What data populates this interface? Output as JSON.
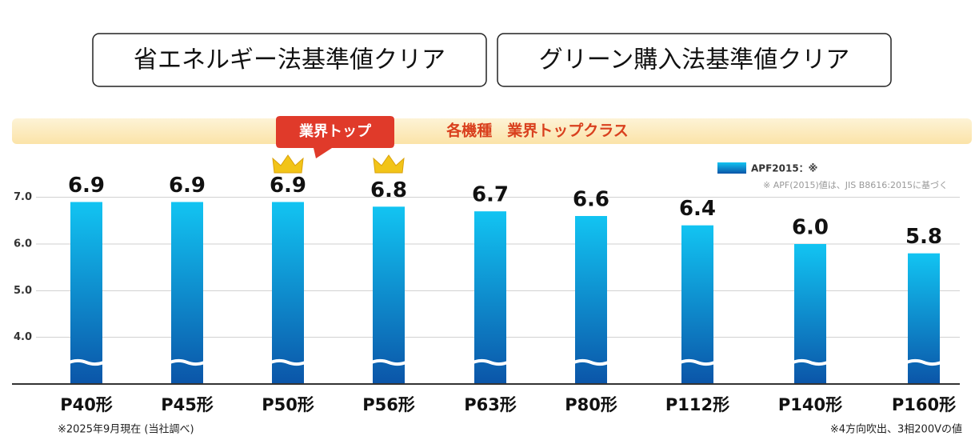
{
  "header": {
    "badges": [
      "省エネルギー法基準値クリア",
      "グリーン購入法基準値クリア"
    ]
  },
  "chart_data": {
    "type": "bar",
    "banner": "各機種　業界トップクラス",
    "callout": "業界トップ",
    "note": "※ APF(2015)値は、JIS B8616:2015に基づく",
    "categories": [
      "P40形",
      "P45形",
      "P50形",
      "P56形",
      "P63形",
      "P80形",
      "P112形",
      "P140形",
      "P160形"
    ],
    "series": [
      {
        "name": "APF2015：※",
        "color": "#0b55a8",
        "values": [
          6.9,
          6.9,
          6.9,
          6.8,
          6.7,
          6.6,
          6.4,
          6.0,
          5.8
        ],
        "value_labels": [
          "6.9",
          "6.9",
          "6.9",
          "6.8",
          "6.7",
          "6.6",
          "6.4",
          "6.0",
          "5.8"
        ]
      }
    ],
    "ylim": [
      3,
      7.8
    ],
    "yticks": [
      {
        "value": 7,
        "label": "7.0"
      },
      {
        "value": 6,
        "label": "6.0"
      },
      {
        "value": 5,
        "label": "5.0"
      },
      {
        "value": 4,
        "label": "4.0"
      }
    ],
    "grid": true,
    "footnotes": [
      "※2025年9月現在 (当社調べ)",
      "※4方向吹出、3相200Vの値"
    ]
  }
}
